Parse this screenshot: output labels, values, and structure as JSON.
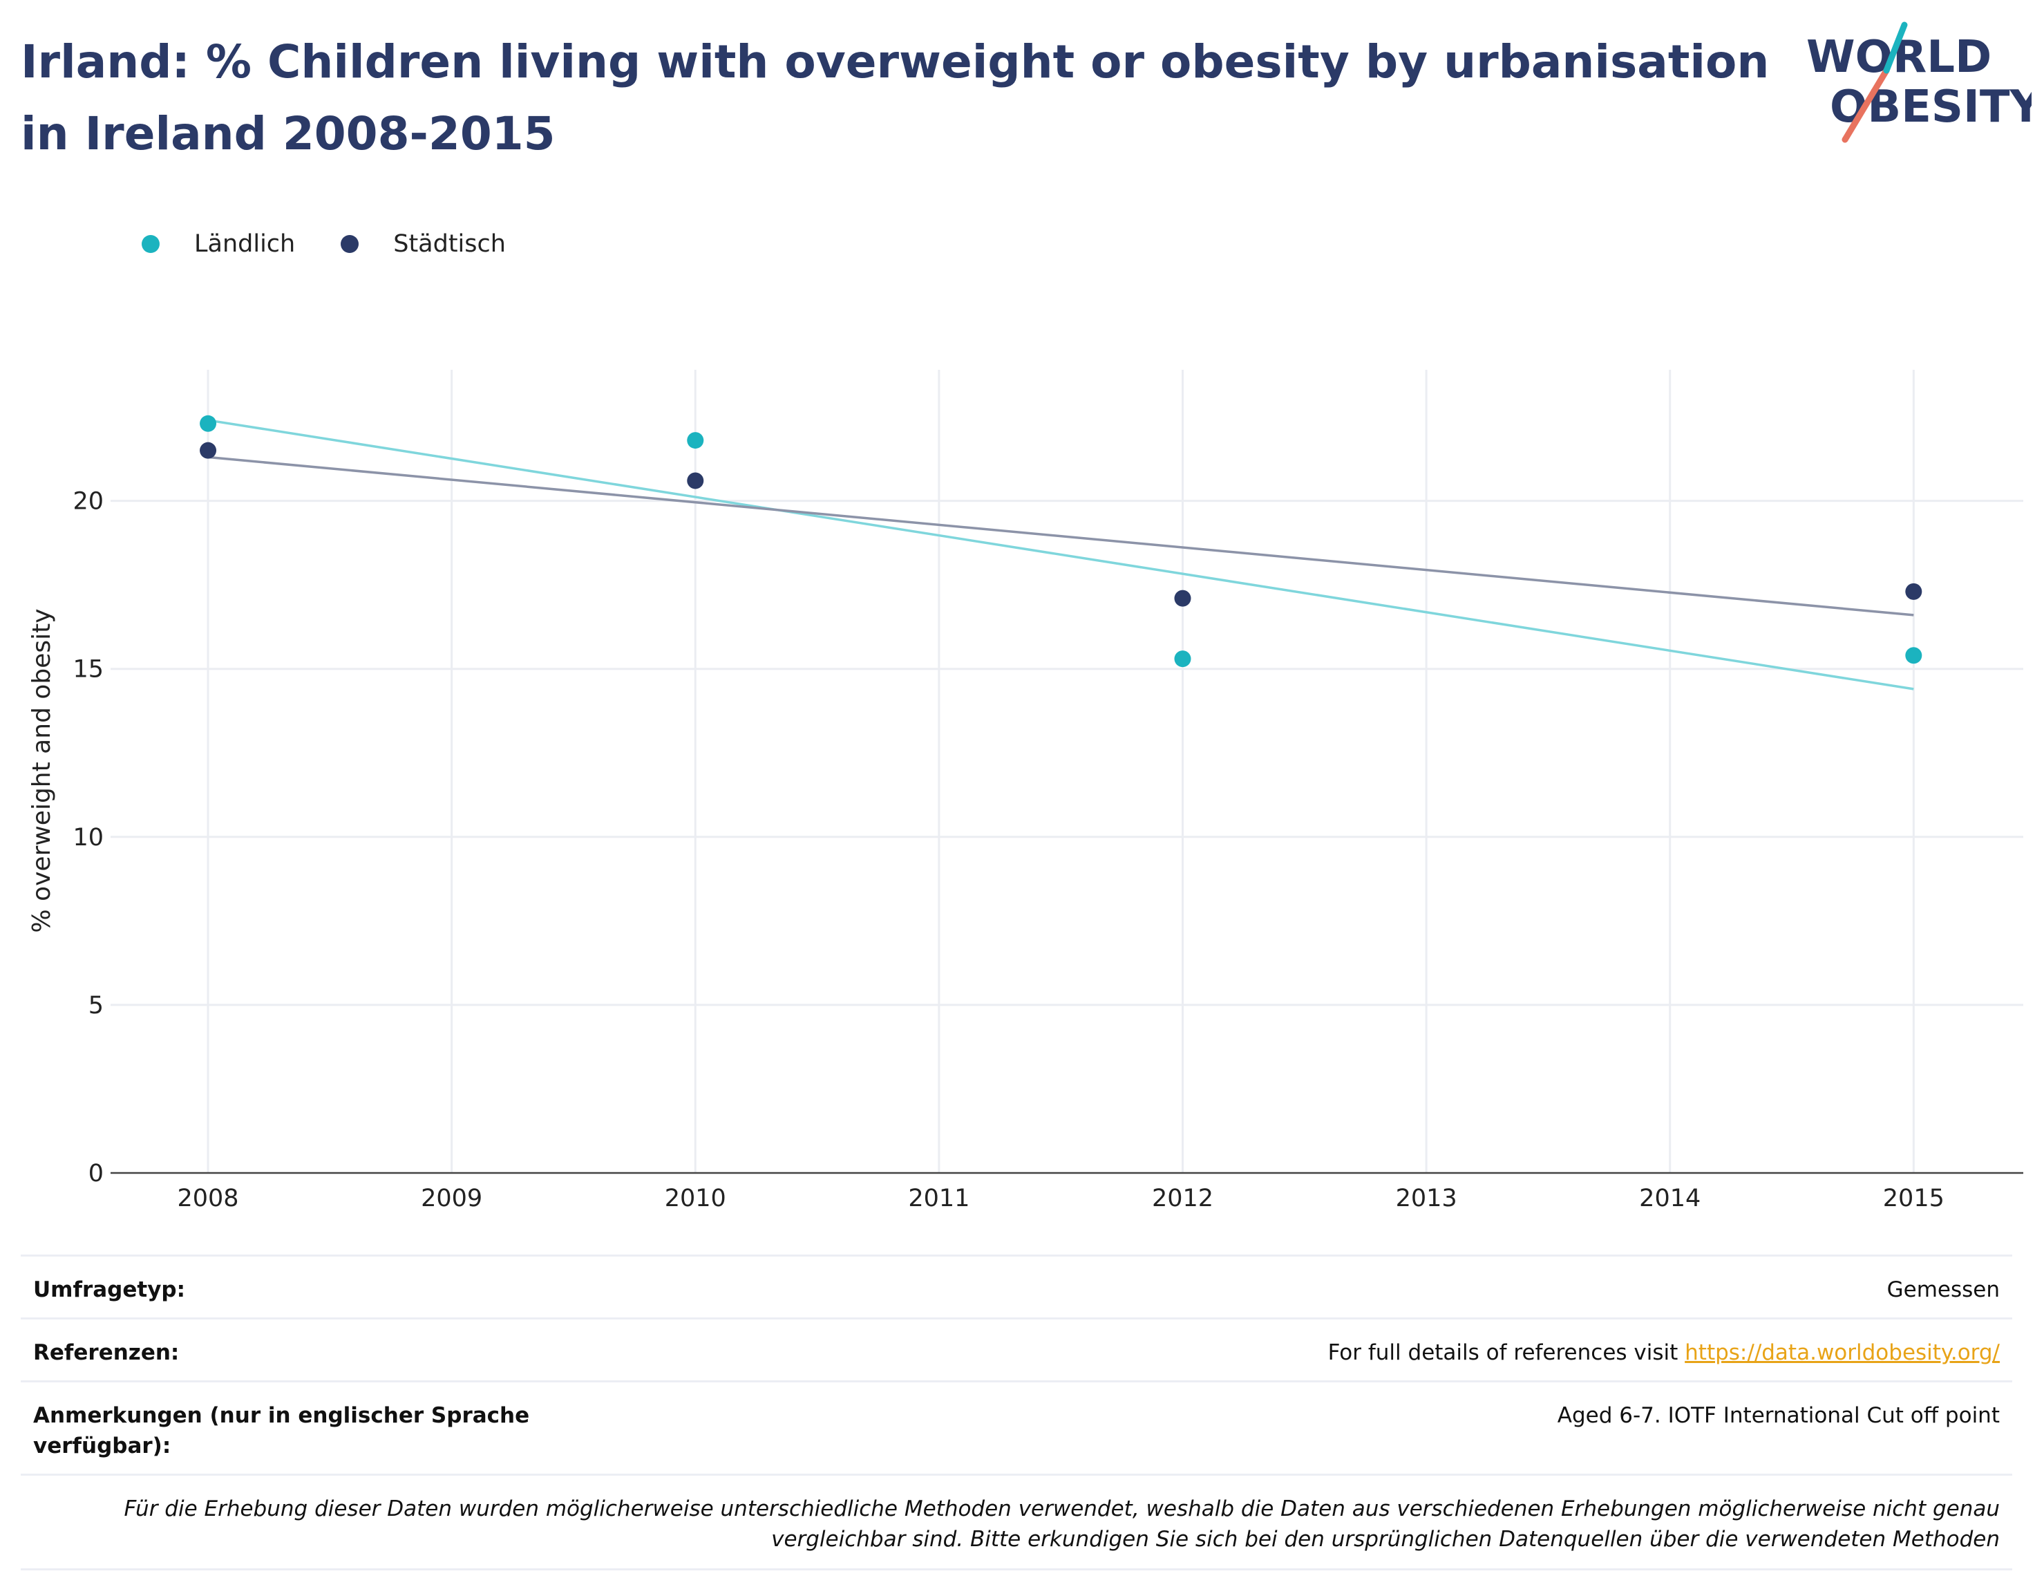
{
  "header": {
    "title": "Irland: % Children living with overweight or obesity by urbanisation in Ireland 2008-2015",
    "logo_line1": "WORLD",
    "logo_line2": "OBESITY"
  },
  "legend": [
    {
      "label": "Ländlich",
      "color": "#1bb3bf"
    },
    {
      "label": "Städtisch",
      "color": "#2b3a67"
    }
  ],
  "chart_data": {
    "type": "scatter",
    "title": "Irland: % Children living with overweight or obesity by urbanisation in Ireland 2008-2015",
    "xlabel": "",
    "ylabel": "% overweight and obesity",
    "x_ticks": [
      "2008",
      "2009",
      "2010",
      "2011",
      "2012",
      "2013",
      "2014",
      "2015"
    ],
    "y_ticks": [
      "0",
      "5",
      "10",
      "15",
      "20"
    ],
    "xlim": [
      2007.6,
      2015.45
    ],
    "ylim": [
      0,
      23.9
    ],
    "grid": true,
    "legend_position": "top-left",
    "series": [
      {
        "name": "Ländlich",
        "color": "#1bb3bf",
        "trend_color": "#7fd6dc",
        "points": [
          {
            "x": 2008,
            "y": 22.3
          },
          {
            "x": 2010,
            "y": 21.8
          },
          {
            "x": 2012,
            "y": 15.3
          },
          {
            "x": 2015,
            "y": 15.4
          }
        ],
        "trendline": [
          {
            "x": 2008,
            "y": 22.4
          },
          {
            "x": 2015,
            "y": 14.4
          }
        ]
      },
      {
        "name": "Städtisch",
        "color": "#2b3a67",
        "trend_color": "#8c93a8",
        "points": [
          {
            "x": 2008,
            "y": 21.5
          },
          {
            "x": 2010,
            "y": 20.6
          },
          {
            "x": 2012,
            "y": 17.1
          },
          {
            "x": 2015,
            "y": 17.3
          }
        ],
        "trendline": [
          {
            "x": 2008,
            "y": 21.3
          },
          {
            "x": 2015,
            "y": 16.6
          }
        ]
      }
    ]
  },
  "info": {
    "survey_type_label": "Umfragetyp:",
    "survey_type_value": "Gemessen",
    "references_label": "Referenzen:",
    "references_text": "For full details of references visit ",
    "references_link": "https://data.worldobesity.org/",
    "notes_label": "Anmerkungen (nur in englischer Sprache verfügbar):",
    "notes_value": "Aged 6-7. IOTF International Cut off point",
    "disclaimer": "Für die Erhebung dieser Daten wurden möglicherweise unterschiedliche Methoden verwendet, weshalb die Daten aus verschiedenen Erhebungen möglicherweise nicht genau vergleichbar sind. Bitte erkundigen Sie sich bei den ursprünglichen Datenquellen über die verwendeten Methoden"
  }
}
